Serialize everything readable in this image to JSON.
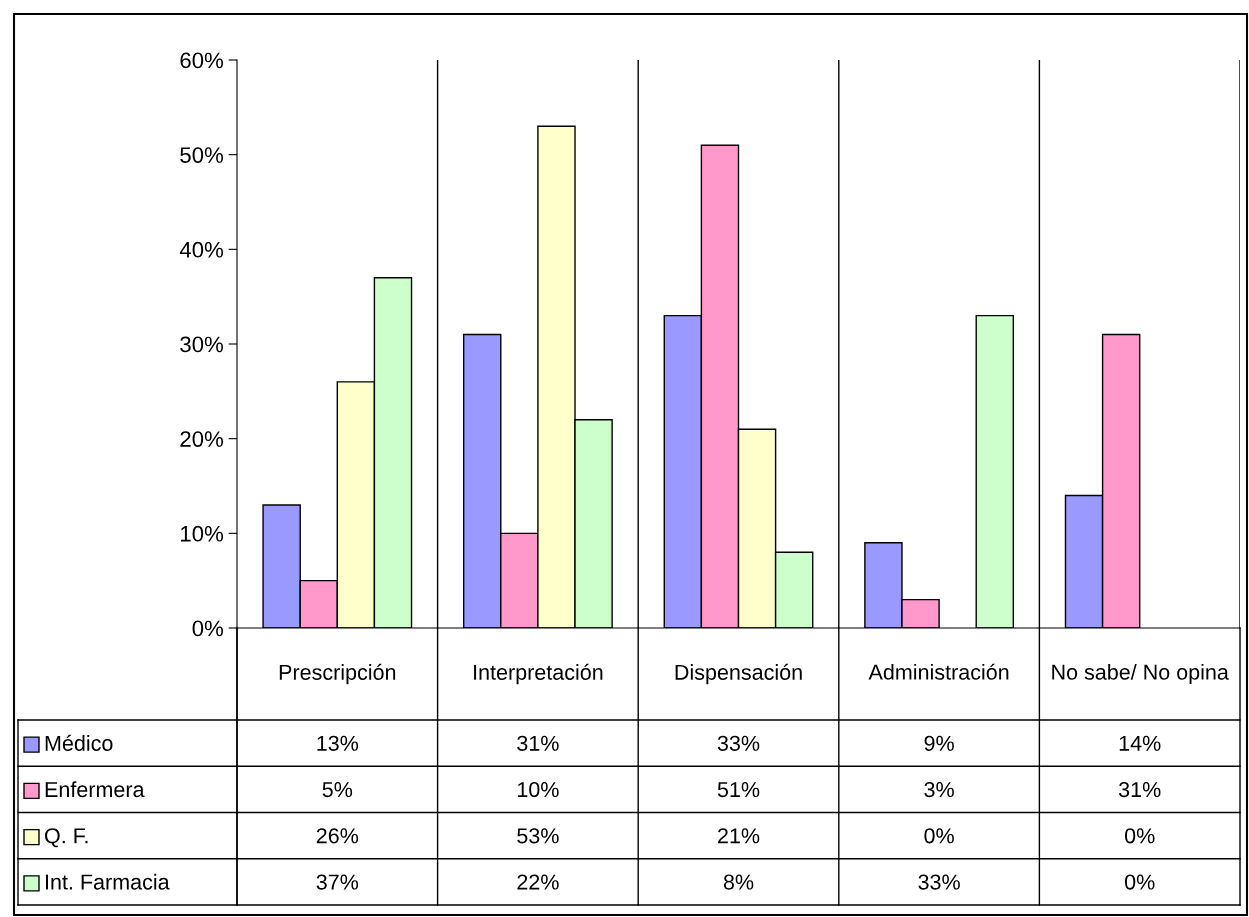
{
  "chart_data": {
    "type": "bar",
    "categories": [
      "Prescripción",
      "Interpretación",
      "Dispensación",
      "Administración",
      "No sabe/ No opina"
    ],
    "series": [
      {
        "name": "Médico",
        "color": "#9999ff",
        "values": [
          13,
          31,
          33,
          9,
          14
        ],
        "value_labels": [
          "13%",
          "31%",
          "33%",
          "9%",
          "14%"
        ]
      },
      {
        "name": "Enfermera",
        "color": "#ff99cc",
        "values": [
          5,
          10,
          51,
          3,
          31
        ],
        "value_labels": [
          "5%",
          "10%",
          "51%",
          "3%",
          "31%"
        ]
      },
      {
        "name": "Q. F.",
        "color": "#ffffcc",
        "values": [
          26,
          53,
          21,
          0,
          0
        ],
        "value_labels": [
          "26%",
          "53%",
          "21%",
          "0%",
          "0%"
        ]
      },
      {
        "name": "Int. Farmacia",
        "color": "#ccffcc",
        "values": [
          37,
          22,
          8,
          33,
          0
        ],
        "value_labels": [
          "37%",
          "22%",
          "8%",
          "33%",
          "0%"
        ]
      }
    ],
    "ylim": [
      0,
      60
    ],
    "yticks": [
      {
        "value": 0,
        "label": "0%"
      },
      {
        "value": 10,
        "label": "10%"
      },
      {
        "value": 20,
        "label": "20%"
      },
      {
        "value": 30,
        "label": "30%"
      },
      {
        "value": 40,
        "label": "40%"
      },
      {
        "value": 50,
        "label": "50%"
      },
      {
        "value": 60,
        "label": "60%"
      }
    ],
    "legend": "bottom"
  }
}
